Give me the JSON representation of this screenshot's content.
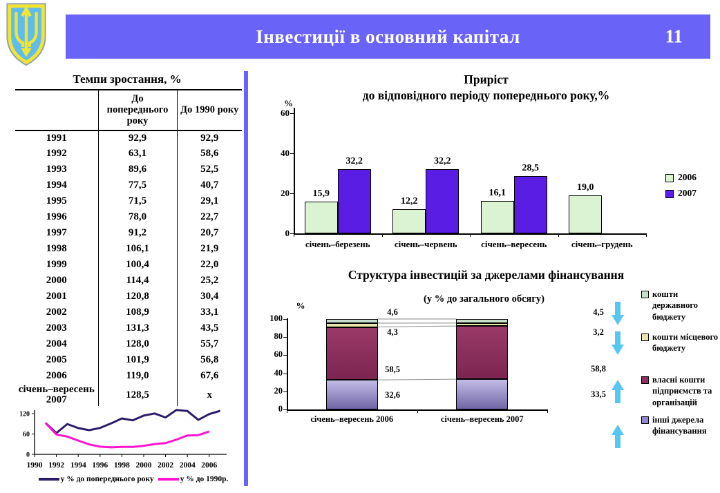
{
  "header": {
    "title": "Інвестиції в основний капітал",
    "page_number": "11"
  },
  "emblem": {
    "name": "coat-of-arms-of-ukraine"
  },
  "table": {
    "title": "Темпи зростання, %",
    "columns": [
      "",
      "До попереднього року",
      "До 1990 року"
    ],
    "rows": [
      [
        "1991",
        "92,9",
        "92,9"
      ],
      [
        "1992",
        "63,1",
        "58,6"
      ],
      [
        "1993",
        "89,6",
        "52,5"
      ],
      [
        "1994",
        "77,5",
        "40,7"
      ],
      [
        "1995",
        "71,5",
        "29,1"
      ],
      [
        "1996",
        "78,0",
        "22,7"
      ],
      [
        "1997",
        "91,2",
        "20,7"
      ],
      [
        "1998",
        "106,1",
        "21,9"
      ],
      [
        "1999",
        "100,4",
        "22,0"
      ],
      [
        "2000",
        "114,4",
        "25,2"
      ],
      [
        "2001",
        "120,8",
        "30,4"
      ],
      [
        "2002",
        "108,9",
        "33,1"
      ],
      [
        "2003",
        "131,3",
        "43,5"
      ],
      [
        "2004",
        "128,0",
        "55,7"
      ],
      [
        "2005",
        "101,9",
        "56,8"
      ],
      [
        "2006",
        "119,0",
        "67,6"
      ],
      [
        "січень–вересень\n2007",
        "128,5",
        "х"
      ]
    ]
  },
  "chart_data": [
    {
      "type": "line",
      "x_start_year": 1991,
      "xlim": [
        1990,
        2007.6
      ],
      "ylim": [
        0,
        150
      ],
      "yticks": [
        0,
        60,
        120
      ],
      "xticks": [
        "1990",
        "1992",
        "1994",
        "1996",
        "1998",
        "2000",
        "2002",
        "2004",
        "2006"
      ],
      "grid": false,
      "legend_position": "bottom",
      "series": [
        {
          "name": "у % до попереднього року",
          "color": "#2D1C6B",
          "values": [
            92.9,
            63.1,
            89.6,
            77.5,
            71.5,
            78.0,
            91.2,
            106.1,
            100.4,
            114.4,
            120.8,
            108.9,
            131.3,
            128.0,
            101.9,
            119.0,
            128.5
          ]
        },
        {
          "name": "у % до 1990р.",
          "color": "#FF14CE",
          "values": [
            92.9,
            58.6,
            52.5,
            40.7,
            29.1,
            22.7,
            20.7,
            21.9,
            22.0,
            25.2,
            30.4,
            33.1,
            43.5,
            55.7,
            56.8,
            67.6
          ]
        }
      ]
    },
    {
      "type": "bar",
      "title": "Приріст\nдо відповідного періоду попереднього року,%",
      "ylabel": "%",
      "ylim": [
        0,
        60
      ],
      "yticks": [
        0,
        20,
        40,
        60
      ],
      "grid": false,
      "legend_position": "right",
      "categories": [
        "січень–березень",
        "січень–червень",
        "січень–вересень",
        "січень–грудень"
      ],
      "series": [
        {
          "name": "2006",
          "color": "#DCF3D3",
          "values": [
            15.9,
            12.2,
            16.1,
            19.0
          ]
        },
        {
          "name": "2007",
          "color": "#5A1DE4",
          "values": [
            32.2,
            32.2,
            28.5,
            null
          ]
        }
      ]
    },
    {
      "type": "bar",
      "stacked": true,
      "title": "Структура інвестицій за джерелами фінансування",
      "subtitle": "(у % до загального обсягу)",
      "ylabel": "%",
      "ylim": [
        0,
        100
      ],
      "yticks": [
        0,
        20,
        40,
        60,
        80,
        100
      ],
      "grid": false,
      "legend_position": "right",
      "arrow_color": "#56C7F2",
      "categories": [
        "січень–вересень 2006",
        "січень–вересень 2007"
      ],
      "series": [
        {
          "name": "інші джерела фінансування",
          "color": "#9287CE",
          "gradient": [
            "#C3BCE8",
            "#7166A6"
          ],
          "values": [
            32.6,
            33.5
          ],
          "trend": "up"
        },
        {
          "name": "власні кошти підприємств та організацій",
          "color": "#8E3061",
          "gradient": [
            "#9A3A69",
            "#7C2550"
          ],
          "values": [
            58.5,
            58.8
          ],
          "trend": "up"
        },
        {
          "name": "кошти місцевого бюджету",
          "color": "#E9E5AB",
          "values": [
            4.3,
            3.2
          ],
          "trend": "down"
        },
        {
          "name": "кошти державного бюджету",
          "color": "#C7DFCA",
          "values": [
            4.6,
            4.5
          ],
          "trend": "down"
        }
      ]
    }
  ]
}
